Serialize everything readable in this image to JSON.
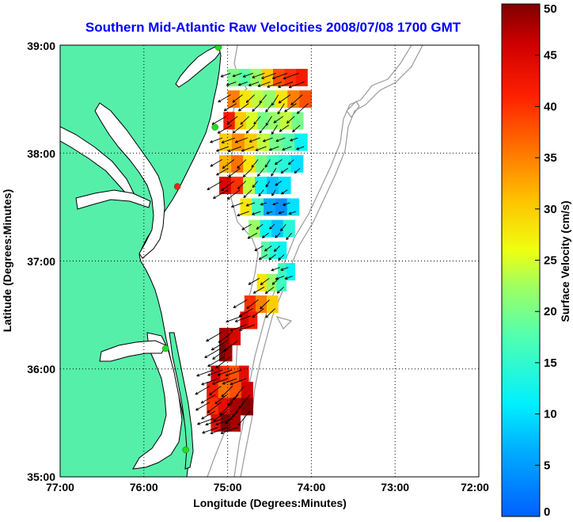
{
  "chart_data": {
    "type": "map",
    "title": "Southern Mid-Atlantic Raw Velocities 2008/07/08 1700 GMT",
    "xlabel": "Longitude (Degrees:Minutes)",
    "ylabel": "Latitude (Degrees:Minutes)",
    "x_ticks": [
      "77:00",
      "76:00",
      "75:00",
      "74:00",
      "73:00",
      "72:00"
    ],
    "y_ticks": [
      "39:00",
      "38:00",
      "37:00",
      "36:00",
      "35:00"
    ],
    "xlim": [
      -77,
      -72
    ],
    "ylim": [
      35,
      39
    ],
    "grid": true,
    "colorbar": {
      "label": "Surface Velocity (cm/s)",
      "min": 0,
      "max": 50,
      "ticks": [
        "0",
        "5",
        "10",
        "15",
        "20",
        "25",
        "30",
        "35",
        "40",
        "45",
        "50"
      ],
      "colormap": "jet"
    },
    "colors": {
      "land": "#55efaa",
      "coast_line": "#000000",
      "bathymetry": "#9a9a9a",
      "station_active": "#22dd22",
      "station_inactive": "#ee2222",
      "title": "#0000ff"
    },
    "stations": [
      {
        "lon": -75.11,
        "lat": 38.98,
        "status": "active"
      },
      {
        "lon": -75.15,
        "lat": 38.24,
        "status": "active"
      },
      {
        "lon": -75.6,
        "lat": 37.69,
        "status": "inactive"
      },
      {
        "lon": -75.74,
        "lat": 36.19,
        "status": "active"
      },
      {
        "lon": -75.5,
        "lat": 35.25,
        "status": "active"
      }
    ],
    "regions": [
      {
        "lat": 38.7,
        "lon0": -75.0,
        "lon1": -74.05,
        "speeds": [
          20,
          18,
          22,
          30,
          38,
          40,
          42
        ]
      },
      {
        "lat": 38.5,
        "lon0": -75.0,
        "lon1": -74.0,
        "speeds": [
          35,
          28,
          24,
          22,
          28,
          35,
          38
        ]
      },
      {
        "lat": 38.3,
        "lon0": -75.05,
        "lon1": -74.1,
        "speeds": [
          42,
          30,
          25,
          20,
          22,
          24,
          20
        ]
      },
      {
        "lat": 38.1,
        "lon0": -75.1,
        "lon1": -74.05,
        "speeds": [
          30,
          34,
          30,
          24,
          20,
          18,
          12
        ]
      },
      {
        "lat": 37.9,
        "lon0": -75.1,
        "lon1": -74.1,
        "speeds": [
          32,
          36,
          28,
          20,
          16,
          14,
          10
        ]
      },
      {
        "lat": 37.7,
        "lon0": -75.1,
        "lon1": -74.25,
        "speeds": [
          45,
          40,
          24,
          12,
          8,
          10
        ]
      },
      {
        "lat": 37.5,
        "lon0": -74.85,
        "lon1": -74.15,
        "speeds": [
          28,
          16,
          6,
          4,
          10
        ]
      },
      {
        "lat": 37.3,
        "lon0": -74.75,
        "lon1": -74.2,
        "speeds": [
          22,
          12,
          8,
          14
        ]
      },
      {
        "lat": 37.1,
        "lon0": -74.6,
        "lon1": -74.3,
        "speeds": [
          18,
          14,
          12
        ]
      },
      {
        "lat": 36.9,
        "lon0": -74.4,
        "lon1": -74.2,
        "speeds": [
          16,
          12
        ]
      },
      {
        "lat": 36.8,
        "lon0": -74.65,
        "lon1": -74.3,
        "speeds": [
          28,
          22,
          16
        ]
      },
      {
        "lat": 36.6,
        "lon0": -74.8,
        "lon1": -74.4,
        "speeds": [
          40,
          35,
          30
        ]
      },
      {
        "lat": 36.45,
        "lon0": -74.85,
        "lon1": -74.65,
        "speeds": [
          45,
          42
        ]
      },
      {
        "lat": 36.3,
        "lon0": -75.1,
        "lon1": -74.85,
        "speeds": [
          48,
          45
        ]
      },
      {
        "lat": 36.15,
        "lon0": -75.1,
        "lon1": -74.95,
        "speeds": [
          50,
          48
        ]
      },
      {
        "lat": 35.95,
        "lon0": -75.2,
        "lon1": -74.75,
        "speeds": [
          46,
          40,
          38,
          44
        ]
      },
      {
        "lat": 35.8,
        "lon0": -75.25,
        "lon1": -74.7,
        "speeds": [
          42,
          36,
          38,
          46
        ]
      },
      {
        "lat": 35.65,
        "lon0": -75.25,
        "lon1": -74.7,
        "speeds": [
          40,
          44,
          48,
          50
        ]
      },
      {
        "lat": 35.5,
        "lon0": -75.2,
        "lon1": -74.85,
        "speeds": [
          44,
          50,
          48
        ]
      }
    ]
  }
}
